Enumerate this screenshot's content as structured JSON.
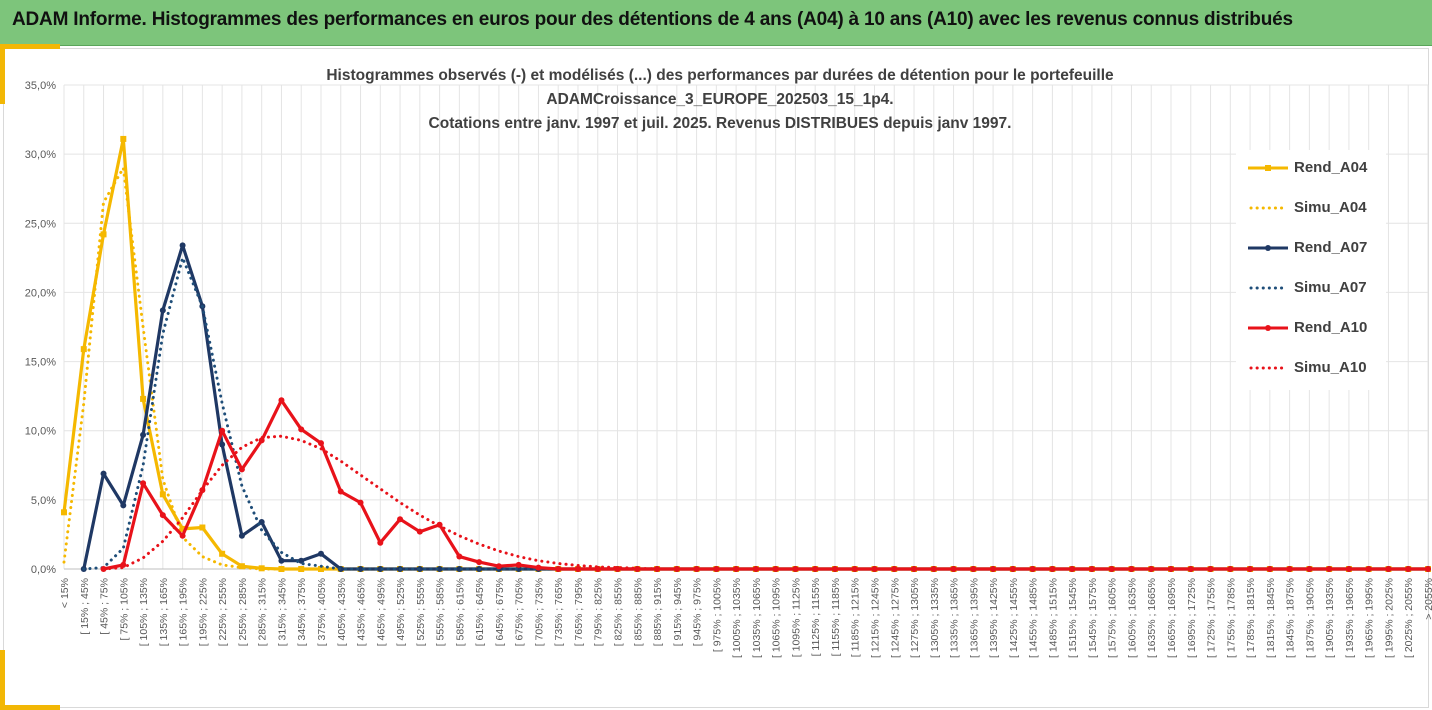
{
  "header": {
    "title": "ADAM Informe. Histogrammes des performances en euros pour des détentions de 4 ans (A04) à 10 ans (A10) avec les revenus connus distribués"
  },
  "chart_data": {
    "type": "line",
    "title_lines": [
      "Histogrammes observés (-) et modélisés (...) des performances par durées de détention pour le portefeuille",
      "ADAMCroissance_3_EUROPE_202503_15_1p4.",
      "Cotations entre janv. 1997 et juil. 2025. Revenus DISTRIBUES depuis janv 1997."
    ],
    "xlabel": "",
    "ylabel": "",
    "ylim": [
      0,
      35
    ],
    "y_ticks": [
      "0,0%",
      "5,0%",
      "10,0%",
      "15,0%",
      "20,0%",
      "25,0%",
      "30,0%",
      "35,0%"
    ],
    "grid": true,
    "legend_position": "right",
    "categories": [
      "< 15%",
      "[ 15% ; 45%",
      "[ 45% ; 75%",
      "[ 75% ; 105%",
      "[ 105% ; 135%",
      "[ 135% ; 165%",
      "[ 165% ; 195%",
      "[ 195% ; 225%",
      "[ 225% ; 255%",
      "[ 255% ; 285%",
      "[ 285% ; 315%",
      "[ 315% ; 345%",
      "[ 345% ; 375%",
      "[ 375% ; 405%",
      "[ 405% ; 435%",
      "[ 435% ; 465%",
      "[ 465% ; 495%",
      "[ 495% ; 525%",
      "[ 525% ; 555%",
      "[ 555% ; 585%",
      "[ 585% ; 615%",
      "[ 615% ; 645%",
      "[ 645% ; 675%",
      "[ 675% ; 705%",
      "[ 705% ; 735%",
      "[ 735% ; 765%",
      "[ 765% ; 795%",
      "[ 795% ; 825%",
      "[ 825% ; 855%",
      "[ 855% ; 885%",
      "[ 885% ; 915%",
      "[ 915% ; 945%",
      "[ 945% ; 975%",
      "[ 975% ; 1005%",
      "[ 1005% ; 1035%",
      "[ 1035% ; 1065%",
      "[ 1065% ; 1095%",
      "[ 1095% ; 1125%",
      "[ 1125% ; 1155%",
      "[ 1155% ; 1185%",
      "[ 1185% ; 1215%",
      "[ 1215% ; 1245%",
      "[ 1245% ; 1275%",
      "[ 1275% ; 1305%",
      "[ 1305% ; 1335%",
      "[ 1335% ; 1365%",
      "[ 1365% ; 1395%",
      "[ 1395% ; 1425%",
      "[ 1425% ; 1455%",
      "[ 1455% ; 1485%",
      "[ 1485% ; 1515%",
      "[ 1515% ; 1545%",
      "[ 1545% ; 1575%",
      "[ 1575% ; 1605%",
      "[ 1605% ; 1635%",
      "[ 1635% ; 1665%",
      "[ 1665% ; 1695%",
      "[ 1695% ; 1725%",
      "[ 1725% ; 1755%",
      "[ 1755% ; 1785%",
      "[ 1785% ; 1815%",
      "[ 1815% ; 1845%",
      "[ 1845% ; 1875%",
      "[ 1875% ; 1905%",
      "[ 1905% ; 1935%",
      "[ 1935% ; 1965%",
      "[ 1965% ; 1995%",
      "[ 1995% ; 2025%",
      "[ 2025% ; 2055%",
      "> 2055%"
    ],
    "series": [
      {
        "name": "Rend_A04",
        "style": "solid",
        "color": "#f5b800",
        "values": [
          4.1,
          15.9,
          24.2,
          31.1,
          12.3,
          5.4,
          2.9,
          3.0,
          1.1,
          0.2,
          0.05,
          0,
          0,
          0,
          0,
          0,
          0,
          0,
          0,
          0,
          0,
          0,
          0,
          0,
          0,
          0,
          0,
          0,
          0,
          0,
          0,
          0,
          0,
          0,
          0,
          0,
          0,
          0,
          0,
          0,
          0,
          0,
          0,
          0,
          0,
          0,
          0,
          0,
          0,
          0,
          0,
          0,
          0,
          0,
          0,
          0,
          0,
          0,
          0,
          0,
          0,
          0,
          0,
          0,
          0,
          0,
          0,
          0,
          0,
          0
        ]
      },
      {
        "name": "Simu_A04",
        "style": "dotted",
        "color": "#f5b800",
        "values": [
          0.5,
          12.0,
          26.5,
          29.0,
          17.5,
          6.5,
          2.3,
          0.9,
          0.3,
          0.1,
          0,
          0,
          0,
          0,
          0,
          0,
          0,
          0,
          0,
          0,
          0,
          0,
          0,
          0,
          0,
          0,
          0,
          0,
          0,
          0,
          0,
          0,
          0,
          0,
          0,
          0,
          0,
          0,
          0,
          0,
          0,
          0,
          0,
          0,
          0,
          0,
          0,
          0,
          0,
          0,
          0,
          0,
          0,
          0,
          0,
          0,
          0,
          0,
          0,
          0,
          0,
          0,
          0,
          0,
          0,
          0,
          0,
          0,
          0,
          0
        ]
      },
      {
        "name": "Rend_A07",
        "style": "solid",
        "color": "#1f3864",
        "values": [
          null,
          0,
          6.9,
          4.6,
          9.7,
          18.7,
          23.4,
          19.0,
          9.0,
          2.4,
          3.4,
          0.6,
          0.6,
          1.1,
          0,
          0,
          0,
          0,
          0,
          0,
          0,
          0,
          0,
          0,
          0,
          0,
          0,
          0,
          0,
          0,
          0,
          0,
          0,
          0,
          0,
          0,
          0,
          0,
          0,
          0,
          0,
          0,
          0,
          0,
          0,
          0,
          0,
          0,
          0,
          0,
          0,
          0,
          0,
          0,
          0,
          0,
          0,
          0,
          0,
          0,
          0,
          0,
          0,
          0,
          0,
          0,
          0,
          0,
          0,
          0
        ]
      },
      {
        "name": "Simu_A07",
        "style": "dotted",
        "color": "#1f4e79",
        "values": [
          null,
          0,
          0.1,
          1.5,
          7.5,
          17.0,
          22.5,
          19.0,
          12.0,
          6.0,
          2.8,
          1.2,
          0.4,
          0.2,
          0,
          0,
          0,
          0,
          0,
          0,
          0,
          0,
          0,
          0,
          0,
          0,
          0,
          0,
          0,
          0,
          0,
          0,
          0,
          0,
          0,
          0,
          0,
          0,
          0,
          0,
          0,
          0,
          0,
          0,
          0,
          0,
          0,
          0,
          0,
          0,
          0,
          0,
          0,
          0,
          0,
          0,
          0,
          0,
          0,
          0,
          0,
          0,
          0,
          0,
          0,
          0,
          0,
          0,
          0,
          0
        ]
      },
      {
        "name": "Rend_A10",
        "style": "solid",
        "color": "#e8121a",
        "values": [
          null,
          null,
          0,
          0.3,
          6.2,
          3.9,
          2.4,
          5.7,
          10.0,
          7.2,
          9.3,
          12.2,
          10.1,
          9.1,
          5.6,
          4.8,
          1.9,
          3.6,
          2.7,
          3.2,
          0.9,
          0.5,
          0.2,
          0.3,
          0.1,
          0,
          0,
          0,
          0,
          0,
          0,
          0,
          0,
          0,
          0,
          0,
          0,
          0,
          0,
          0,
          0,
          0,
          0,
          0,
          0,
          0,
          0,
          0,
          0,
          0,
          0,
          0,
          0,
          0,
          0,
          0,
          0,
          0,
          0,
          0,
          0,
          0,
          0,
          0,
          0,
          0,
          0,
          0,
          0,
          0
        ]
      },
      {
        "name": "Simu_A10",
        "style": "dotted",
        "color": "#e8121a",
        "values": [
          null,
          null,
          0,
          0.1,
          0.8,
          2.0,
          3.7,
          5.7,
          7.5,
          8.8,
          9.5,
          9.6,
          9.3,
          8.7,
          7.8,
          6.8,
          5.8,
          4.8,
          3.9,
          3.1,
          2.4,
          1.8,
          1.3,
          0.9,
          0.6,
          0.4,
          0.25,
          0.15,
          0.1,
          0.05,
          0,
          0,
          0,
          0,
          0,
          0,
          0,
          0,
          0,
          0,
          0,
          0,
          0,
          0,
          0,
          0,
          0,
          0,
          0,
          0,
          0,
          0,
          0,
          0,
          0,
          0,
          0,
          0,
          0,
          0,
          0,
          0,
          0,
          0,
          0,
          0,
          0,
          0,
          0,
          0
        ]
      }
    ]
  }
}
